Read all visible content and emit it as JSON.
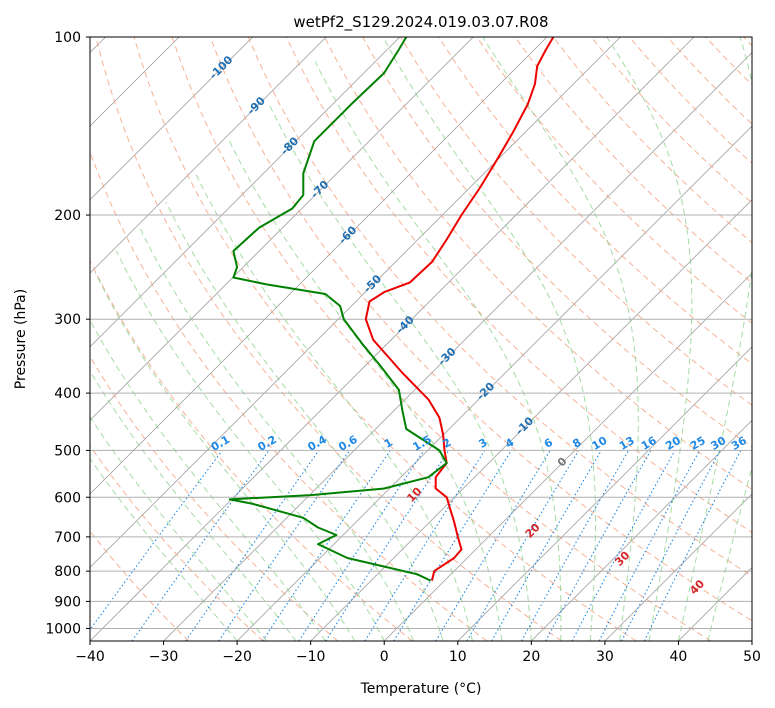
{
  "chart_data": {
    "type": "line",
    "title": "wetPf2_S129.2024.019.03.07.R08",
    "xlabel": "Temperature (°C)",
    "ylabel": "Pressure (hPa)",
    "xlim": [
      -40,
      50
    ],
    "ylim": [
      1050,
      100
    ],
    "y_scale": "log",
    "x_ticks": [
      -40,
      -30,
      -20,
      -10,
      0,
      10,
      20,
      30,
      40,
      50
    ],
    "y_ticks": [
      100,
      200,
      300,
      400,
      500,
      600,
      700,
      800,
      900,
      1000
    ],
    "grid": true,
    "skew": 45,
    "colors": {
      "temperature": "#ee0000",
      "dewpoint": "#008000",
      "isotherm": "#9e9e9e",
      "dry_adiabat": "#f4a582",
      "moist_adiabat": "#8fd18f",
      "mixing_ratio": "#1e88e5",
      "isotherm_label": "#1f6fb2",
      "moist_label": "#d62728"
    },
    "series": [
      {
        "name": "",
        "role": "temperature",
        "points": [
          [
            6.5,
            830
          ],
          [
            6.8,
            800
          ],
          [
            9.5,
            760
          ],
          [
            10.5,
            735
          ],
          [
            10.0,
            700
          ],
          [
            9.5,
            660
          ],
          [
            9.0,
            630
          ],
          [
            8.5,
            600
          ],
          [
            7.0,
            580
          ],
          [
            7.0,
            555
          ],
          [
            8.5,
            525
          ],
          [
            8.2,
            500
          ],
          [
            8.0,
            470
          ],
          [
            7.5,
            440
          ],
          [
            6.0,
            410
          ],
          [
            2.5,
            370
          ],
          [
            -1.5,
            325
          ],
          [
            -2.5,
            300
          ],
          [
            -2.0,
            280
          ],
          [
            0.0,
            270
          ],
          [
            3.5,
            260
          ],
          [
            6.5,
            240
          ],
          [
            8.5,
            220
          ],
          [
            10.5,
            200
          ],
          [
            13.0,
            180
          ],
          [
            15.5,
            160
          ],
          [
            17.5,
            145
          ],
          [
            19.5,
            130
          ],
          [
            20.5,
            120
          ],
          [
            20.8,
            112
          ],
          [
            22.0,
            105
          ],
          [
            23.0,
            100
          ]
        ]
      },
      {
        "name": "",
        "role": "dewpoint",
        "points": [
          [
            6.3,
            830
          ],
          [
            4.5,
            810
          ],
          [
            -5.0,
            760
          ],
          [
            -9.0,
            720
          ],
          [
            -6.5,
            695
          ],
          [
            -9.0,
            675
          ],
          [
            -11.0,
            650
          ],
          [
            -18.0,
            615
          ],
          [
            -21.0,
            605
          ],
          [
            -10.0,
            595
          ],
          [
            0.0,
            580
          ],
          [
            6.0,
            555
          ],
          [
            8.5,
            525
          ],
          [
            7.5,
            500
          ],
          [
            3.0,
            460
          ],
          [
            2.5,
            430
          ],
          [
            2.0,
            395
          ],
          [
            -0.5,
            360
          ],
          [
            -3.0,
            330
          ],
          [
            -5.5,
            300
          ],
          [
            -6.0,
            285
          ],
          [
            -8.0,
            272
          ],
          [
            -16.0,
            262
          ],
          [
            -20.5,
            255
          ],
          [
            -20.0,
            245
          ],
          [
            -20.5,
            230
          ],
          [
            -17.0,
            210
          ],
          [
            -12.5,
            195
          ],
          [
            -11.0,
            185
          ],
          [
            -11.0,
            170
          ],
          [
            -9.5,
            150
          ],
          [
            -4.5,
            130
          ],
          [
            0.0,
            115
          ],
          [
            2.0,
            105
          ],
          [
            3.0,
            100
          ]
        ]
      }
    ],
    "isotherm_labels": [
      "-100",
      "-90",
      "-80",
      "-70",
      "-60",
      "-50",
      "-40",
      "-30",
      "-20",
      "-10",
      "0"
    ],
    "isotherm_label_values": [
      -100,
      -90,
      -80,
      -70,
      -60,
      -50,
      -40,
      -30,
      -20,
      -10,
      0
    ],
    "moist_adiabat_labels": [
      "10",
      "20",
      "30",
      "40"
    ],
    "moist_adiabat_label_values": [
      10,
      20,
      30,
      40
    ],
    "mixing_ratio_labels": [
      "0.1",
      "0.2",
      "0.4",
      "0.6",
      "1",
      "1.5",
      "2",
      "3",
      "4",
      "6",
      "8",
      "10",
      "13",
      "16",
      "20",
      "25",
      "30",
      "36"
    ],
    "mixing_ratio_values": [
      0.1,
      0.2,
      0.4,
      0.6,
      1,
      1.5,
      2,
      3,
      4,
      6,
      8,
      10,
      13,
      16,
      20,
      25,
      30,
      36
    ]
  }
}
